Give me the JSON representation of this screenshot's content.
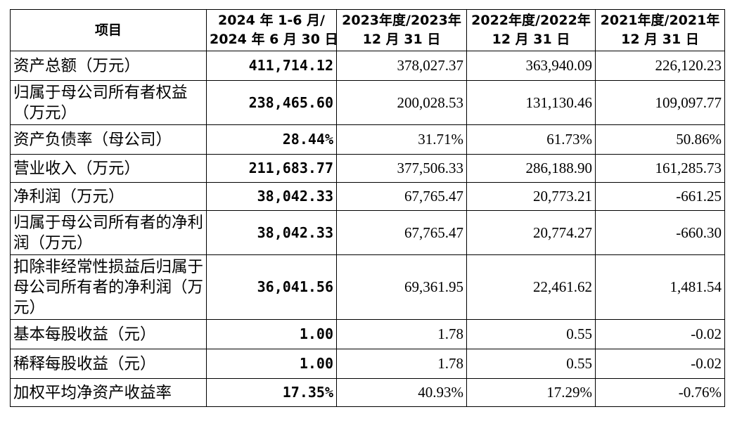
{
  "table": {
    "header": [
      [
        "项目"
      ],
      [
        "2024 年 1-6 月/",
        "2024 年 6 月 30 日"
      ],
      [
        "2023年度/2023年",
        "12 月 31 日"
      ],
      [
        "2022年度/2022年",
        "12 月 31 日"
      ],
      [
        "2021年度/2021年",
        "12 月 31 日"
      ]
    ],
    "rows": [
      [
        "资产总额（万元）",
        "411,714.12",
        "378,027.37",
        "363,940.09",
        "226,120.23"
      ],
      [
        "归属于母公司所有者权益（万元）",
        "238,465.60",
        "200,028.53",
        "131,130.46",
        "109,097.77"
      ],
      [
        "资产负债率（母公司）",
        "28.44%",
        "31.71%",
        "61.73%",
        "50.86%"
      ],
      [
        "营业收入（万元）",
        "211,683.77",
        "377,506.33",
        "286,188.90",
        "161,285.73"
      ],
      [
        "净利润（万元）",
        "38,042.33",
        "67,765.47",
        "20,773.21",
        "-661.25"
      ],
      [
        "归属于母公司所有者的净利润（万元）",
        "38,042.33",
        "67,765.47",
        "20,774.27",
        "-660.30"
      ],
      [
        "扣除非经常性损益后归属于母公司所有者的净利润（万元）",
        "36,041.56",
        "69,361.95",
        "22,461.62",
        "1,481.54"
      ],
      [
        "基本每股收益（元）",
        "1.00",
        "1.78",
        "0.55",
        "-0.02"
      ],
      [
        "稀释每股收益（元）",
        "1.00",
        "1.78",
        "0.55",
        "-0.02"
      ],
      [
        "加权平均净资产收益率",
        "17.35%",
        "40.93%",
        "17.29%",
        "-0.76%"
      ]
    ]
  }
}
